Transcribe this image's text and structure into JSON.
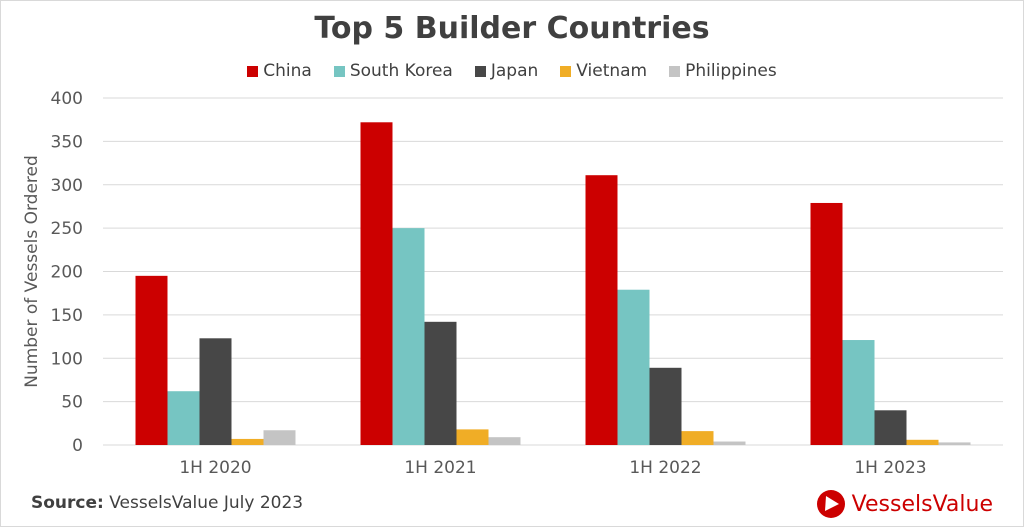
{
  "chart_data": {
    "type": "bar",
    "title": "Top 5 Builder Countries",
    "xlabel": "",
    "ylabel": "Number of Vessels Ordered",
    "ylim": [
      0,
      400
    ],
    "yticks": [
      0,
      50,
      100,
      150,
      200,
      250,
      300,
      350,
      400
    ],
    "grid": true,
    "legend_position": "top",
    "categories": [
      "1H 2020",
      "1H 2021",
      "1H 2022",
      "1H 2023"
    ],
    "series": [
      {
        "name": "China",
        "color": "#cc0000",
        "values": [
          195,
          372,
          311,
          279
        ]
      },
      {
        "name": "South Korea",
        "color": "#76c5c2",
        "values": [
          62,
          250,
          179,
          121
        ]
      },
      {
        "name": "Japan",
        "color": "#474747",
        "values": [
          123,
          142,
          89,
          40
        ]
      },
      {
        "name": "Vietnam",
        "color": "#f0ad26",
        "values": [
          7,
          18,
          16,
          6
        ]
      },
      {
        "name": "Philippines",
        "color": "#c4c4c4",
        "values": [
          17,
          9,
          4,
          3
        ]
      }
    ]
  },
  "source": {
    "label": "Source:",
    "text": "VesselsValue July 2023"
  },
  "logo": {
    "text": "VesselsValue"
  }
}
